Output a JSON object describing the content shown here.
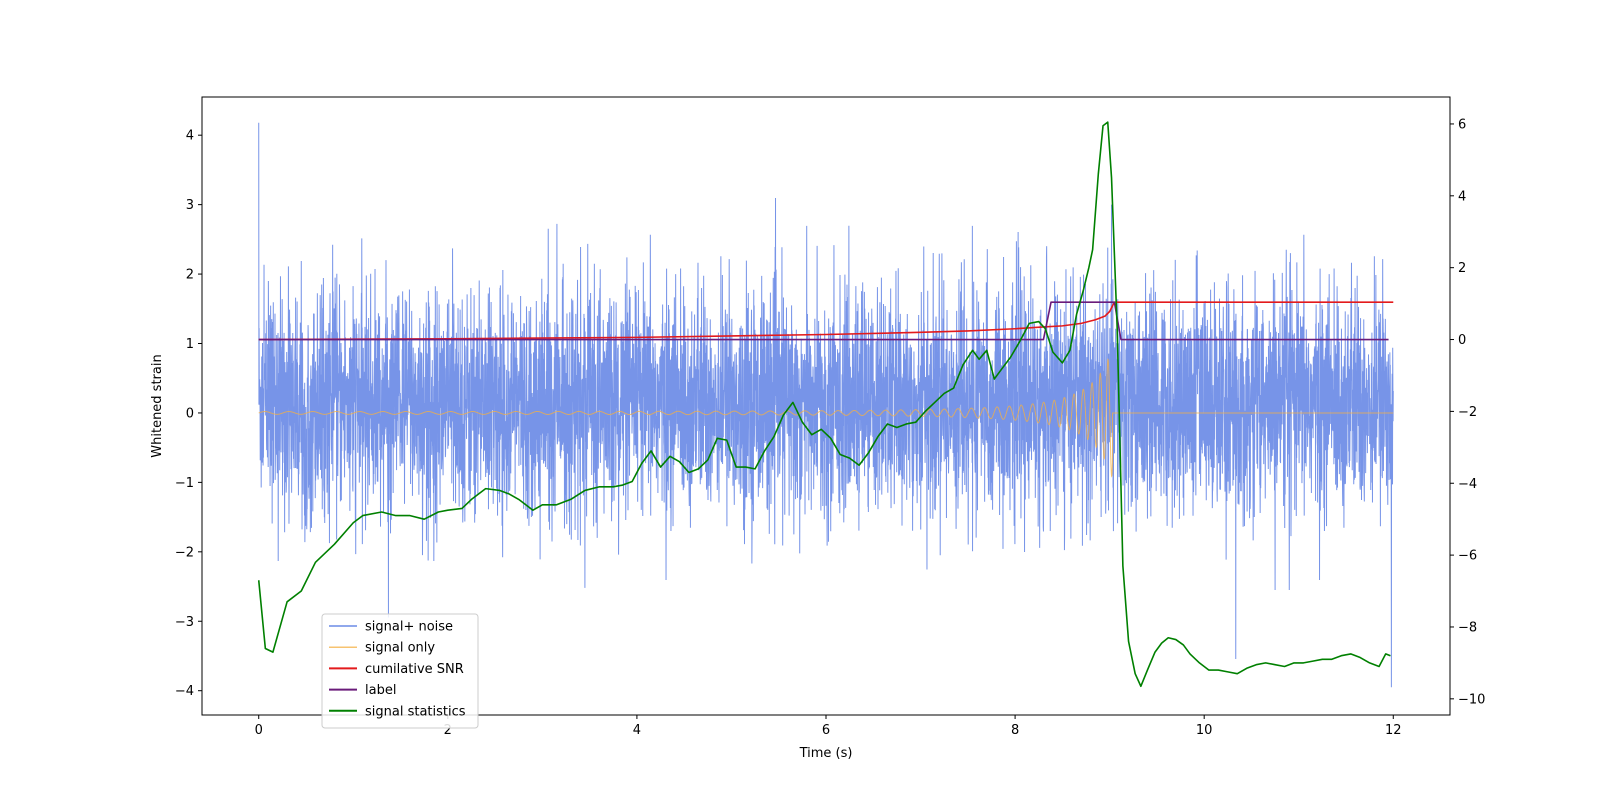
{
  "chart_data": {
    "type": "line",
    "title": "",
    "xlabel": "Time (s)",
    "ylabel": "Whitened strain",
    "xlim": [
      -0.6,
      12.6
    ],
    "ylim": [
      -4.35,
      4.55
    ],
    "y2lim": [
      -10.45,
      6.75
    ],
    "xticks": [
      0,
      2,
      4,
      6,
      8,
      10,
      12
    ],
    "yticks": [
      -4,
      -3,
      -2,
      -1,
      0,
      1,
      2,
      3,
      4
    ],
    "y2ticks": [
      -10,
      -8,
      -6,
      -4,
      -2,
      0,
      2,
      4,
      6
    ],
    "legend_position": "lower-left",
    "series": [
      {
        "name": "signal+ noise",
        "color": "#6b8be6",
        "axis": "left",
        "kind": "noise",
        "x_range": [
          0,
          12
        ],
        "typical_range": [
          -1.2,
          1.6
        ],
        "extremes": [
          {
            "x": 0.0,
            "y": 4.18
          },
          {
            "x": 9.02,
            "y": 3.0
          },
          {
            "x": 11.98,
            "y": -3.95
          },
          {
            "x": 3.45,
            "y": -2.52
          },
          {
            "x": 10.75,
            "y": -2.55
          },
          {
            "x": 10.9,
            "y": -2.55
          },
          {
            "x": 2.05,
            "y": 2.37
          },
          {
            "x": 8.98,
            "y": 2.38
          }
        ]
      },
      {
        "name": "signal only",
        "color": "#f5b041",
        "axis": "left",
        "kind": "chirp",
        "start": 0,
        "merger": 9.03,
        "end": 12,
        "amp_start": 0.02,
        "amp_merger": 0.95
      },
      {
        "name": "cumilative SNR",
        "color": "#e31a1c",
        "axis": "right",
        "x": [
          0,
          1,
          2,
          3,
          4,
          5,
          6,
          7,
          7.5,
          8,
          8.3,
          8.5,
          8.7,
          8.85,
          8.95,
          9.0,
          9.05,
          9.1,
          12
        ],
        "y": [
          0,
          0.01,
          0.02,
          0.04,
          0.06,
          0.1,
          0.14,
          0.2,
          0.24,
          0.3,
          0.35,
          0.38,
          0.45,
          0.55,
          0.65,
          0.78,
          1.04,
          1.04,
          1.04
        ]
      },
      {
        "name": "label",
        "color": "#6a1b7a",
        "axis": "right",
        "x": [
          0,
          8.3,
          8.38,
          9.05,
          9.12,
          11.95
        ],
        "y": [
          0,
          0,
          1.04,
          1.04,
          0,
          0
        ]
      },
      {
        "name": "signal statistics",
        "color": "#008000",
        "axis": "right",
        "x": [
          0,
          0.07,
          0.15,
          0.3,
          0.45,
          0.6,
          0.8,
          1.0,
          1.1,
          1.3,
          1.45,
          1.6,
          1.75,
          1.9,
          2.0,
          2.15,
          2.25,
          2.4,
          2.55,
          2.65,
          2.75,
          2.9,
          3.0,
          3.15,
          3.3,
          3.45,
          3.6,
          3.75,
          3.85,
          3.95,
          4.05,
          4.15,
          4.25,
          4.35,
          4.45,
          4.55,
          4.65,
          4.75,
          4.85,
          4.95,
          5.05,
          5.15,
          5.25,
          5.35,
          5.45,
          5.55,
          5.65,
          5.75,
          5.85,
          5.95,
          6.05,
          6.15,
          6.25,
          6.35,
          6.45,
          6.55,
          6.65,
          6.75,
          6.85,
          6.95,
          7.05,
          7.15,
          7.25,
          7.35,
          7.45,
          7.55,
          7.62,
          7.7,
          7.78,
          7.85,
          7.95,
          8.05,
          8.15,
          8.25,
          8.32,
          8.4,
          8.5,
          8.58,
          8.65,
          8.72,
          8.78,
          8.82,
          8.88,
          8.93,
          8.98,
          9.02,
          9.08,
          9.14,
          9.2,
          9.27,
          9.33,
          9.4,
          9.48,
          9.55,
          9.62,
          9.7,
          9.78,
          9.85,
          9.95,
          10.05,
          10.15,
          10.25,
          10.35,
          10.45,
          10.55,
          10.65,
          10.75,
          10.85,
          10.95,
          11.05,
          11.15,
          11.25,
          11.35,
          11.45,
          11.55,
          11.65,
          11.75,
          11.85,
          11.92,
          11.97
        ],
        "y": [
          -6.7,
          -8.6,
          -8.7,
          -7.3,
          -7.0,
          -6.2,
          -5.7,
          -5.1,
          -4.9,
          -4.8,
          -4.9,
          -4.9,
          -5.0,
          -4.8,
          -4.75,
          -4.7,
          -4.45,
          -4.15,
          -4.2,
          -4.3,
          -4.45,
          -4.75,
          -4.6,
          -4.6,
          -4.45,
          -4.2,
          -4.1,
          -4.1,
          -4.05,
          -3.95,
          -3.45,
          -3.1,
          -3.55,
          -3.25,
          -3.4,
          -3.7,
          -3.6,
          -3.35,
          -2.75,
          -2.8,
          -3.55,
          -3.55,
          -3.6,
          -3.1,
          -2.7,
          -2.1,
          -1.75,
          -2.3,
          -2.65,
          -2.5,
          -2.75,
          -3.2,
          -3.3,
          -3.5,
          -3.15,
          -2.7,
          -2.35,
          -2.45,
          -2.35,
          -2.3,
          -2.0,
          -1.75,
          -1.5,
          -1.35,
          -0.7,
          -0.3,
          -0.55,
          -0.3,
          -1.1,
          -0.85,
          -0.5,
          -0.05,
          0.45,
          0.5,
          0.3,
          -0.35,
          -0.65,
          -0.3,
          0.7,
          1.35,
          2.0,
          2.5,
          4.6,
          5.95,
          6.05,
          4.5,
          0.3,
          -6.3,
          -8.4,
          -9.3,
          -9.65,
          -9.2,
          -8.7,
          -8.45,
          -8.3,
          -8.35,
          -8.5,
          -8.75,
          -9.0,
          -9.2,
          -9.2,
          -9.25,
          -9.3,
          -9.15,
          -9.05,
          -9.0,
          -9.05,
          -9.1,
          -9.0,
          -9.0,
          -8.95,
          -8.9,
          -8.9,
          -8.8,
          -8.75,
          -8.85,
          -9.0,
          -9.1,
          -8.75,
          -8.8
        ]
      }
    ]
  }
}
